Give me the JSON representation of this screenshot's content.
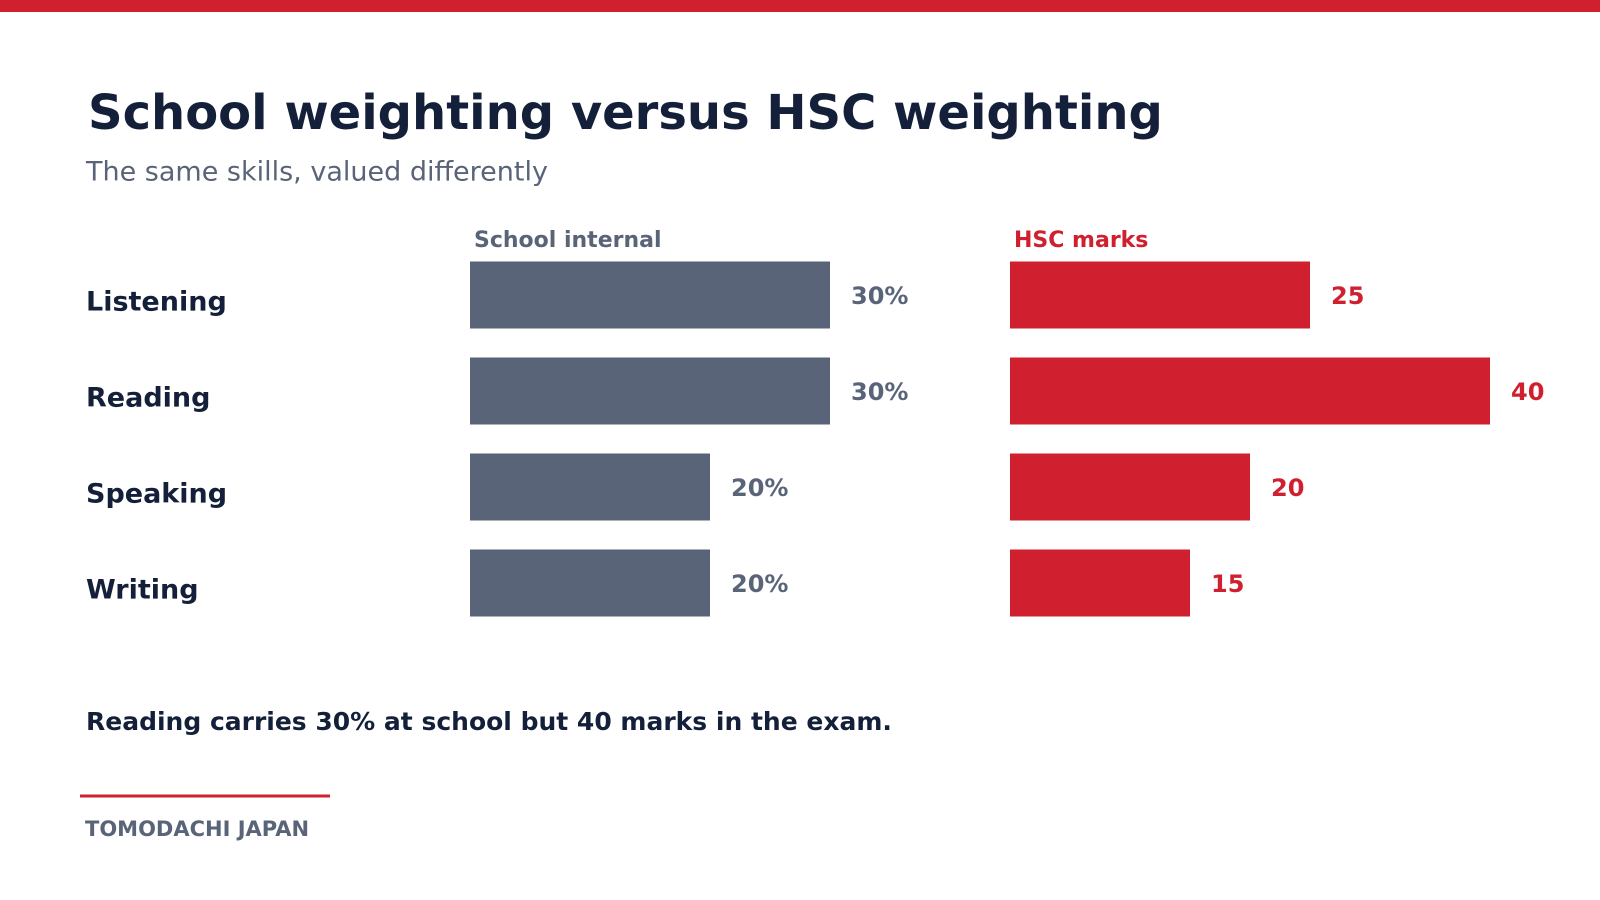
{
  "title": "School weighting versus HSC weighting",
  "subtitle": "The same skills, valued differently",
  "chart_data": {
    "type": "bar",
    "orientation": "horizontal",
    "categories": [
      "Listening",
      "Reading",
      "Speaking",
      "Writing"
    ],
    "xlim": [
      0,
      40
    ],
    "series": [
      {
        "name": "School internal",
        "color": "#5a6478",
        "values": [
          30,
          30,
          20,
          20
        ],
        "value_labels": [
          "30%",
          "30%",
          "20%",
          "20%"
        ]
      },
      {
        "name": "HSC marks",
        "color": "#d0202f",
        "values": [
          25,
          40,
          20,
          15
        ]
      }
    ]
  },
  "note": "Reading carries 30% at school but 40 marks in the exam.",
  "footer": "TOMODACHI JAPAN"
}
